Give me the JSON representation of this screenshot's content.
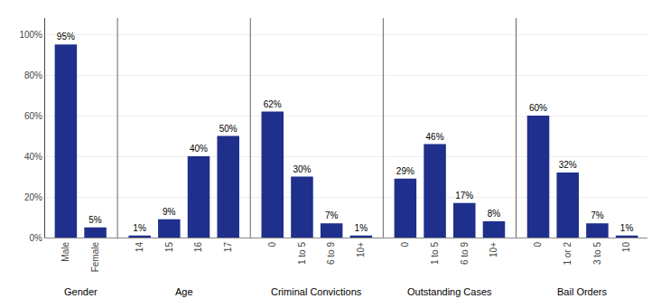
{
  "chart_data": {
    "type": "bar",
    "categories": [
      "Male",
      "Female",
      "14",
      "15",
      "16",
      "17",
      "0",
      "1 to 5",
      "6 to 9",
      "10+",
      "0",
      "1 to 5",
      "6 to 9",
      "10+",
      "0",
      "1 or 2",
      "3 to 5",
      "10"
    ],
    "category_groups": [
      "Gender",
      "Gender",
      "Age",
      "Age",
      "Age",
      "Age",
      "Criminal Convictions",
      "Criminal Convictions",
      "Criminal Convictions",
      "Criminal Convictions",
      "Outstanding Cases",
      "Outstanding Cases",
      "Outstanding Cases",
      "Outstanding Cases",
      "Bail Orders",
      "Bail Orders",
      "Bail Orders",
      "Bail Orders"
    ],
    "values": [
      95,
      5,
      1,
      9,
      40,
      50,
      62,
      30,
      7,
      1,
      29,
      46,
      17,
      8,
      60,
      32,
      7,
      1
    ],
    "value_labels": [
      "95%",
      "5%",
      "1%",
      "9%",
      "40%",
      "50%",
      "62%",
      "30%",
      "7%",
      "1%",
      "29%",
      "46%",
      "17%",
      "8%",
      "60%",
      "32%",
      "7%",
      "1%"
    ],
    "data_labels": true,
    "color": "#1f2f8c",
    "ylim": [
      0,
      108
    ],
    "yticks": [
      {
        "value": 0,
        "label": "0%"
      },
      {
        "value": 20,
        "label": "20%"
      },
      {
        "value": 40,
        "label": "40%"
      },
      {
        "value": 60,
        "label": "60%"
      },
      {
        "value": 80,
        "label": "80%"
      },
      {
        "value": 100,
        "label": "100%"
      }
    ],
    "grid": true
  }
}
